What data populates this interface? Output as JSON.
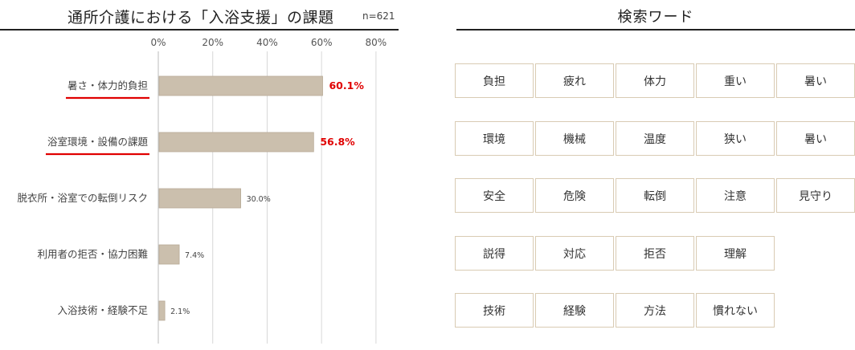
{
  "chart_data": {
    "type": "bar",
    "orientation": "horizontal",
    "title": "通所介護における「入浴支援」の課題",
    "note": "n=621",
    "categories": [
      "暑さ・体力的負担",
      "浴室環境・設備の課題",
      "脱衣所・浴室での転倒リスク",
      "利用者の拒否・協力困難",
      "入浴技術・経験不足"
    ],
    "values": [
      60.1,
      56.8,
      30.0,
      7.4,
      2.1
    ],
    "value_labels": [
      "60.1%",
      "56.8%",
      "30.0%",
      "7.4%",
      "2.1%"
    ],
    "highlighted": [
      true,
      true,
      false,
      false,
      false
    ],
    "xlim": [
      0,
      80
    ],
    "ticks": [
      "0%",
      "20%",
      "40%",
      "60%",
      "80%"
    ],
    "grid": true,
    "bar_color": "#cbbfad",
    "highlight_color": "#e00000"
  },
  "keywords": {
    "title": "検索ワード",
    "rows": [
      [
        "負担",
        "疲れ",
        "体力",
        "重い",
        "暑い"
      ],
      [
        "環境",
        "機械",
        "温度",
        "狭い",
        "暑い"
      ],
      [
        "安全",
        "危険",
        "転倒",
        "注意",
        "見守り"
      ],
      [
        "説得",
        "対応",
        "拒否",
        "理解"
      ],
      [
        "技術",
        "経験",
        "方法",
        "慣れない"
      ]
    ],
    "border_color": "#d9cbb3"
  }
}
